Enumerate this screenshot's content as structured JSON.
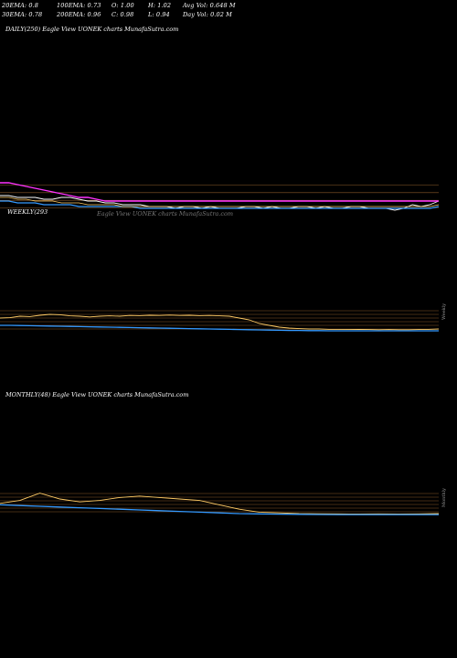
{
  "header": {
    "row1": [
      "20EMA: 0.8",
      "100EMA: 0.73",
      "O: 1.00",
      "H: 1.02",
      "Avg Vol: 0.648 M"
    ],
    "row2": [
      "30EMA: 0.78",
      "200EMA: 0.96",
      "C: 0.98",
      "L: 0.94",
      "Day Vol: 0.02 M"
    ]
  },
  "panels": {
    "daily": {
      "label": "DAILY(250) Eagle  View  UONEK charts MunafaSutra.com"
    },
    "weekly": {
      "label": "WEEKLY(293",
      "watermark": "Eagle  View  UONEK charts MunafaSutra.com",
      "side": "Weekly"
    },
    "monthly": {
      "label": "MONTHLY(48) Eagle  View  UONEK charts MunafaSutra.com",
      "side": "Monthly"
    }
  },
  "colors": {
    "background": "#000000",
    "price": "#ffffff",
    "ema_slow": "#ff33ff",
    "ema_fast": "#3399ff",
    "ema_mid": "#ffcc66",
    "levels": "#8a5a2a"
  },
  "chart_data": [
    {
      "type": "line",
      "name": "daily",
      "series": [
        {
          "values": [
            1.03,
            1.03,
            1.02,
            1.02,
            1.02,
            1.01,
            1.01,
            1.02,
            1.02,
            1.01,
            1.0,
            1.0,
            0.99,
            0.99,
            0.98,
            0.98,
            0.98,
            0.97,
            0.97,
            0.97,
            0.96,
            0.97,
            0.97,
            0.96,
            0.97,
            0.96,
            0.96,
            0.96,
            0.97,
            0.97,
            0.96,
            0.97,
            0.96,
            0.96,
            0.97,
            0.97,
            0.96,
            0.97,
            0.96,
            0.96,
            0.97,
            0.97,
            0.96,
            0.96,
            0.96,
            0.95,
            0.96,
            0.98,
            0.97,
            0.98,
            1.0
          ]
        },
        {
          "values": [
            1.1,
            1.1,
            1.09,
            1.08,
            1.07,
            1.06,
            1.05,
            1.04,
            1.03,
            1.02,
            1.02,
            1.01,
            1.0,
            1.0,
            1.0,
            1.0,
            1.0,
            1.0,
            1.0,
            1.0,
            1.0,
            1.0,
            1.0,
            1.0,
            1.0,
            1.0,
            1.0,
            1.0,
            1.0,
            1.0,
            1.0,
            1.0,
            1.0,
            1.0,
            1.0,
            1.0,
            1.0,
            1.0,
            1.0,
            1.0,
            1.0,
            1.0,
            1.0,
            1.0,
            1.0,
            1.0,
            1.0,
            1.0,
            1.0,
            1.0,
            1.0
          ]
        },
        {
          "values": [
            1.0,
            1.0,
            0.99,
            0.99,
            0.99,
            0.98,
            0.98,
            0.98,
            0.98,
            0.97,
            0.97,
            0.97,
            0.97,
            0.97,
            0.97,
            0.97,
            0.96,
            0.96,
            0.96,
            0.96,
            0.96,
            0.96,
            0.96,
            0.96,
            0.96,
            0.96,
            0.96,
            0.96,
            0.96,
            0.96,
            0.96,
            0.96,
            0.96,
            0.96,
            0.96,
            0.96,
            0.96,
            0.96,
            0.96,
            0.96,
            0.96,
            0.96,
            0.96,
            0.96,
            0.96,
            0.96,
            0.96,
            0.96,
            0.96,
            0.96,
            0.97
          ]
        },
        {
          "values": [
            1.02,
            1.02,
            1.01,
            1.01,
            1.0,
            1.0,
            1.0,
            0.99,
            0.99,
            0.99,
            0.98,
            0.98,
            0.98,
            0.98,
            0.97,
            0.97,
            0.97,
            0.97,
            0.97,
            0.97,
            0.97,
            0.97,
            0.97,
            0.97,
            0.97,
            0.97,
            0.97,
            0.97,
            0.97,
            0.97,
            0.97,
            0.97,
            0.97,
            0.97,
            0.97,
            0.97,
            0.97,
            0.97,
            0.97,
            0.97,
            0.97,
            0.97,
            0.97,
            0.97,
            0.97,
            0.97,
            0.97,
            0.97,
            0.97,
            0.97,
            0.98
          ]
        }
      ],
      "ylim": [
        0.9,
        1.15
      ]
    },
    {
      "type": "line",
      "name": "weekly",
      "series": [
        {
          "values": [
            1.6,
            1.62,
            1.7,
            1.68,
            1.75,
            1.8,
            1.78,
            1.72,
            1.7,
            1.66,
            1.7,
            1.72,
            1.7,
            1.74,
            1.73,
            1.75,
            1.74,
            1.76,
            1.74,
            1.75,
            1.73,
            1.74,
            1.72,
            1.7,
            1.6,
            1.5,
            1.3,
            1.2,
            1.1,
            1.05,
            1.02,
            1.0,
            1.0,
            0.98,
            0.98,
            0.97,
            0.98,
            0.97,
            0.96,
            0.97,
            0.96,
            0.96,
            0.97,
            0.98,
            1.0
          ]
        },
        {
          "values": [
            1.2,
            1.2,
            1.19,
            1.18,
            1.17,
            1.16,
            1.15,
            1.14,
            1.13,
            1.12,
            1.11,
            1.1,
            1.09,
            1.08,
            1.07,
            1.06,
            1.05,
            1.04,
            1.03,
            1.02,
            1.01,
            1.0,
            0.99,
            0.98,
            0.97,
            0.96,
            0.95,
            0.94,
            0.93,
            0.92,
            0.92,
            0.91,
            0.91,
            0.9,
            0.9,
            0.9,
            0.9,
            0.9,
            0.9,
            0.9,
            0.9,
            0.9,
            0.9,
            0.9,
            0.9
          ]
        }
      ],
      "ylim": [
        0.5,
        2.5
      ]
    },
    {
      "type": "line",
      "name": "monthly",
      "series": [
        {
          "values": [
            1.7,
            1.9,
            2.4,
            2.0,
            1.8,
            1.9,
            2.1,
            2.2,
            2.1,
            2.0,
            1.9,
            1.6,
            1.3,
            1.1,
            1.05,
            1.0,
            0.99,
            0.98,
            0.97,
            0.98,
            0.97,
            0.98,
            1.0
          ]
        },
        {
          "values": [
            1.6,
            1.55,
            1.5,
            1.45,
            1.4,
            1.35,
            1.3,
            1.25,
            1.2,
            1.15,
            1.1,
            1.05,
            1.0,
            0.98,
            0.96,
            0.95,
            0.94,
            0.93,
            0.93,
            0.93,
            0.93,
            0.93,
            0.93
          ]
        }
      ],
      "ylim": [
        0.5,
        3.0
      ]
    }
  ]
}
